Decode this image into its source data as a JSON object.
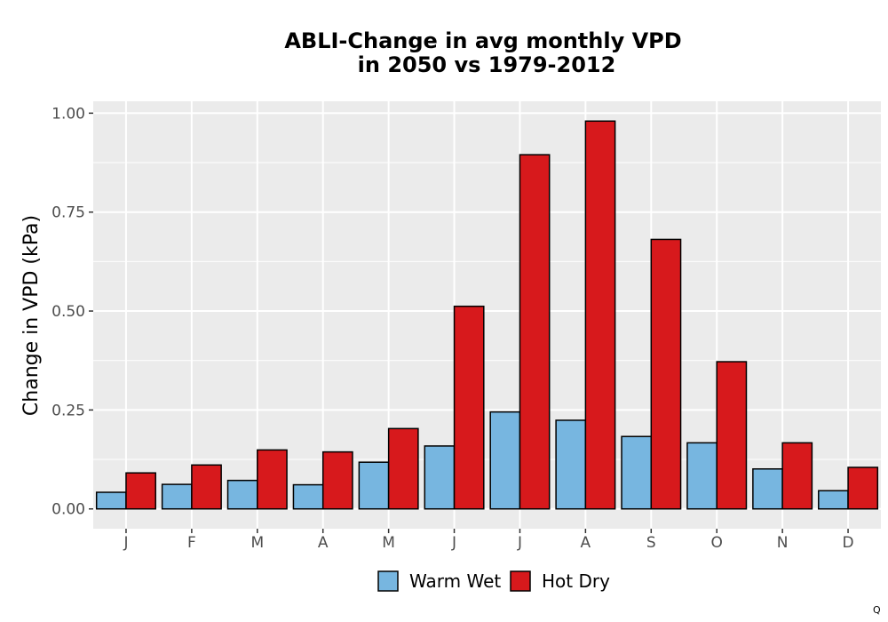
{
  "chart_data": {
    "type": "bar",
    "title": [
      "ABLI-Change in avg monthly VPD",
      "in 2050 vs 1979-2012"
    ],
    "xlabel": "",
    "ylabel": "Change in VPD (kPa)",
    "ylim": [
      -0.05,
      1.03
    ],
    "yticks": [
      0.0,
      0.25,
      0.5,
      0.75,
      1.0
    ],
    "ytick_labels": [
      "0.00",
      "0.25",
      "0.50",
      "0.75",
      "1.00"
    ],
    "categories": [
      "J",
      "F",
      "M",
      "A",
      "M",
      "J",
      "J",
      "A",
      "S",
      "O",
      "N",
      "D"
    ],
    "series": [
      {
        "name": "Warm Wet",
        "color": "#77b6e0",
        "values": [
          0.042,
          0.062,
          0.072,
          0.061,
          0.118,
          0.159,
          0.245,
          0.224,
          0.183,
          0.167,
          0.101,
          0.046
        ]
      },
      {
        "name": "Hot Dry",
        "color": "#d7191c",
        "values": [
          0.091,
          0.111,
          0.149,
          0.144,
          0.203,
          0.512,
          0.895,
          0.98,
          0.681,
          0.372,
          0.167,
          0.105
        ]
      }
    ],
    "grid": true,
    "legend_position": "bottom",
    "corner_mark": "Q"
  }
}
